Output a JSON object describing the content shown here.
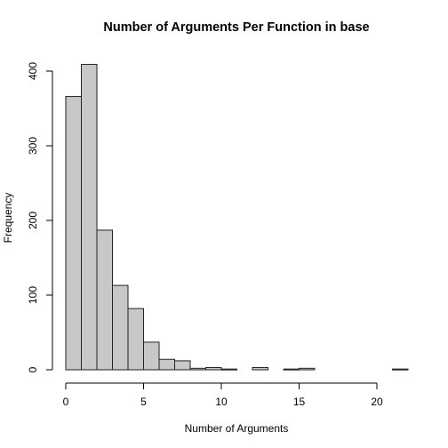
{
  "chart_data": {
    "type": "bar",
    "title": "Number of Arguments Per Function in base",
    "xlabel": "Number of Arguments",
    "ylabel": "Frequency",
    "bin_width": 1,
    "bins": [
      {
        "x0": 0,
        "x1": 1,
        "count": 366
      },
      {
        "x0": 1,
        "x1": 2,
        "count": 409
      },
      {
        "x0": 2,
        "x1": 3,
        "count": 187
      },
      {
        "x0": 3,
        "x1": 4,
        "count": 113
      },
      {
        "x0": 4,
        "x1": 5,
        "count": 82
      },
      {
        "x0": 5,
        "x1": 6,
        "count": 37
      },
      {
        "x0": 6,
        "x1": 7,
        "count": 14
      },
      {
        "x0": 7,
        "x1": 8,
        "count": 12
      },
      {
        "x0": 8,
        "x1": 9,
        "count": 2
      },
      {
        "x0": 9,
        "x1": 10,
        "count": 3
      },
      {
        "x0": 10,
        "x1": 11,
        "count": 1
      },
      {
        "x0": 11,
        "x1": 12,
        "count": 0
      },
      {
        "x0": 12,
        "x1": 13,
        "count": 3
      },
      {
        "x0": 13,
        "x1": 14,
        "count": 0
      },
      {
        "x0": 14,
        "x1": 15,
        "count": 1
      },
      {
        "x0": 15,
        "x1": 16,
        "count": 2
      },
      {
        "x0": 16,
        "x1": 17,
        "count": 0
      },
      {
        "x0": 17,
        "x1": 18,
        "count": 0
      },
      {
        "x0": 18,
        "x1": 19,
        "count": 0
      },
      {
        "x0": 19,
        "x1": 20,
        "count": 0
      },
      {
        "x0": 20,
        "x1": 21,
        "count": 0
      },
      {
        "x0": 21,
        "x1": 22,
        "count": 1
      }
    ],
    "xlim": [
      0,
      22
    ],
    "ylim": [
      0,
      410
    ],
    "x_ticks": [
      "0",
      "5",
      "10",
      "15",
      "20"
    ],
    "y_ticks": [
      "0",
      "100",
      "200",
      "300",
      "400"
    ],
    "grid": false,
    "bar_color": "#c8c8c8",
    "bar_edge_color": "#222222"
  }
}
